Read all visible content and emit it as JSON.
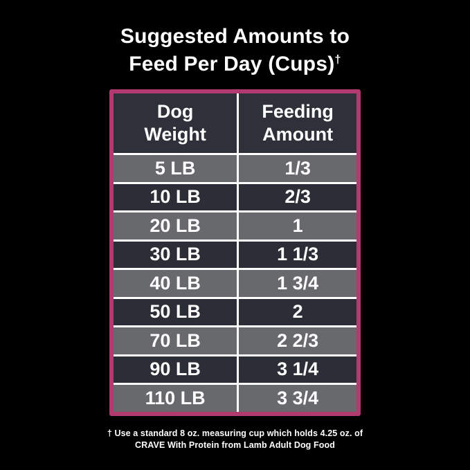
{
  "title": {
    "line1": "Suggested Amounts to",
    "line2": "Feed Per Day (Cups)",
    "dagger": "†"
  },
  "table": {
    "headers": {
      "weight": "Dog\nWeight",
      "amount": "Feeding\nAmount"
    },
    "rows": [
      {
        "weight": "5 LB",
        "amount": "1/3"
      },
      {
        "weight": "10 LB",
        "amount": "2/3"
      },
      {
        "weight": "20 LB",
        "amount": "1"
      },
      {
        "weight": "30 LB",
        "amount": "1 1/3"
      },
      {
        "weight": "40 LB",
        "amount": "1 3/4"
      },
      {
        "weight": "50 LB",
        "amount": "2"
      },
      {
        "weight": "70 LB",
        "amount": "2 2/3"
      },
      {
        "weight": "90 LB",
        "amount": "3 1/4"
      },
      {
        "weight": "110 LB",
        "amount": "3 3/4"
      }
    ]
  },
  "footnote": {
    "text": "† Use a standard 8 oz. measuring cup which holds 4.25 oz. of\nCRAVE With Protein from Lamb Adult Dog Food"
  },
  "colors": {
    "background": "#000000",
    "table_border": "#b13a71",
    "header_bg": "#2e303a",
    "row_dark": "#2b2d37",
    "row_gray": "#68696d",
    "divider": "#ffffff",
    "text": "#ffffff"
  },
  "chart_data": {
    "type": "table",
    "title": "Suggested Amounts to Feed Per Day (Cups)†",
    "columns": [
      "Dog Weight",
      "Feeding Amount"
    ],
    "rows": [
      [
        "5 LB",
        "1/3"
      ],
      [
        "10 LB",
        "2/3"
      ],
      [
        "20 LB",
        "1"
      ],
      [
        "30 LB",
        "1 1/3"
      ],
      [
        "40 LB",
        "1 3/4"
      ],
      [
        "50 LB",
        "2"
      ],
      [
        "70 LB",
        "2 2/3"
      ],
      [
        "90 LB",
        "3 1/4"
      ],
      [
        "110 LB",
        "3 3/4"
      ]
    ],
    "footnote": "† Use a standard 8 oz. measuring cup which holds 4.25 oz. of CRAVE With Protein from Lamb Adult Dog Food"
  }
}
